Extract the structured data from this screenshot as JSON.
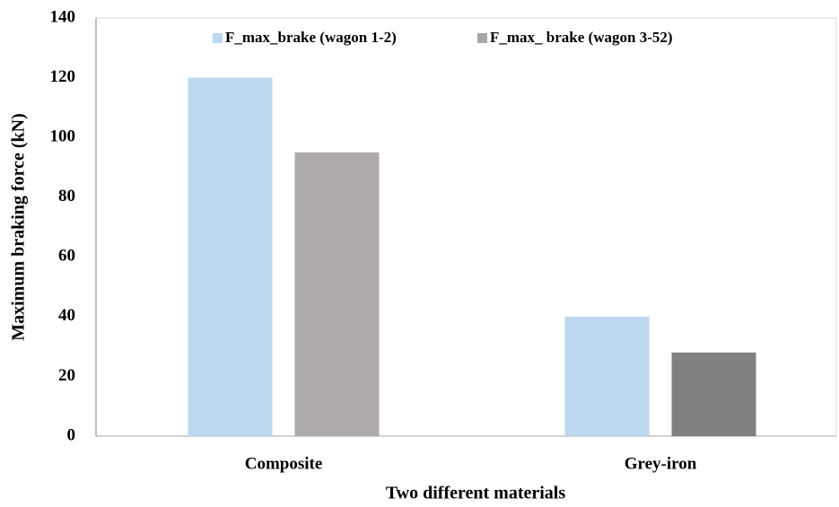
{
  "chart_data": {
    "type": "bar",
    "categories": [
      "Composite",
      "Grey-iron"
    ],
    "series": [
      {
        "name": "F_max_brake (wagon 1-2)",
        "color": "#bdd7ee",
        "values": [
          120,
          40
        ]
      },
      {
        "name": "F_max_ brake (wagon 3-52)",
        "color": "#a6a6a6",
        "colors": [
          "#aeaaaa",
          "#808080"
        ],
        "values": [
          95,
          28
        ]
      }
    ],
    "xlabel": "Two different materials",
    "ylabel": "Maximum braking force (kN)",
    "ylim": [
      0,
      140
    ],
    "yticks": [
      0,
      20,
      40,
      60,
      80,
      100,
      120,
      140
    ],
    "grid": false,
    "legend": "top"
  }
}
